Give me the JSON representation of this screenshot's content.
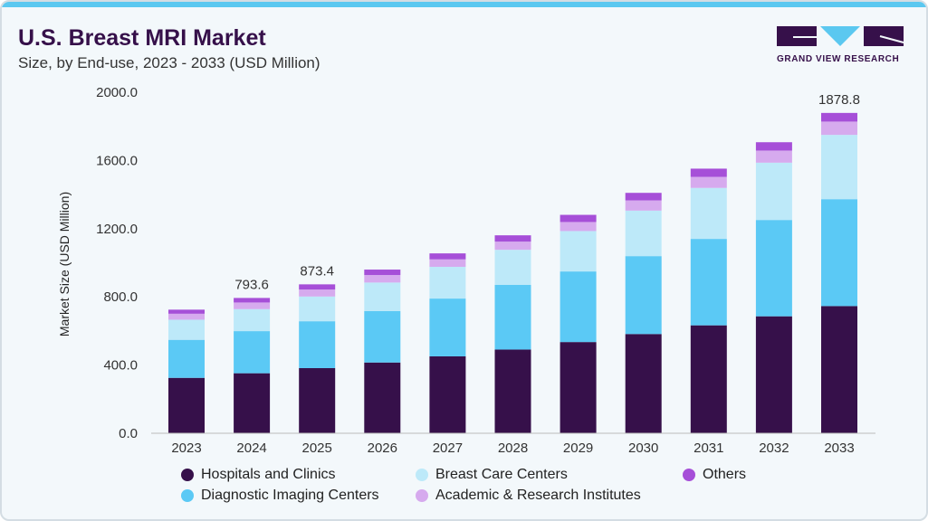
{
  "header": {
    "title": "U.S. Breast MRI Market",
    "subtitle": "Size, by End-use, 2023 - 2033 (USD Million)"
  },
  "logo": {
    "text": "GRAND VIEW RESEARCH"
  },
  "chart_data": {
    "type": "bar",
    "stacked": true,
    "ylabel": "Market Size (USD Million)",
    "ylim": [
      0,
      2000
    ],
    "yticks": [
      "0.0",
      "400.0",
      "800.0",
      "1200.0",
      "1600.0",
      "2000.0"
    ],
    "categories": [
      "2023",
      "2024",
      "2025",
      "2026",
      "2027",
      "2028",
      "2029",
      "2030",
      "2031",
      "2032",
      "2033"
    ],
    "series": [
      {
        "name": "Hospitals and Clinics",
        "color": "#36104a",
        "values": [
          325,
          352,
          382,
          415,
          451,
          491,
          535,
          582,
          633,
          686,
          746
        ]
      },
      {
        "name": "Diagnostic Imaging Centers",
        "color": "#5bc9f5",
        "values": [
          223,
          247,
          275,
          302,
          339,
          379,
          414,
          457,
          507,
          565,
          627
        ]
      },
      {
        "name": "Breast Care Centers",
        "color": "#bde9f9",
        "values": [
          118,
          129,
          145,
          167,
          186,
          206,
          237,
          267,
          299,
          336,
          377
        ]
      },
      {
        "name": "Academic & Research Institutes",
        "color": "#d6aaee",
        "values": [
          35,
          39,
          41,
          44,
          44,
          48,
          53,
          60,
          65,
          71,
          78
        ]
      },
      {
        "name": "Others",
        "color": "#a64fd8",
        "values": [
          24,
          26.6,
          30.4,
          32,
          35,
          37,
          42,
          44,
          48,
          49,
          50.8
        ]
      }
    ],
    "data_labels": [
      {
        "category": "2024",
        "text": "793.6"
      },
      {
        "category": "2025",
        "text": "873.4"
      },
      {
        "category": "2033",
        "text": "1878.8"
      }
    ],
    "grid": false,
    "legend": "bottom"
  }
}
